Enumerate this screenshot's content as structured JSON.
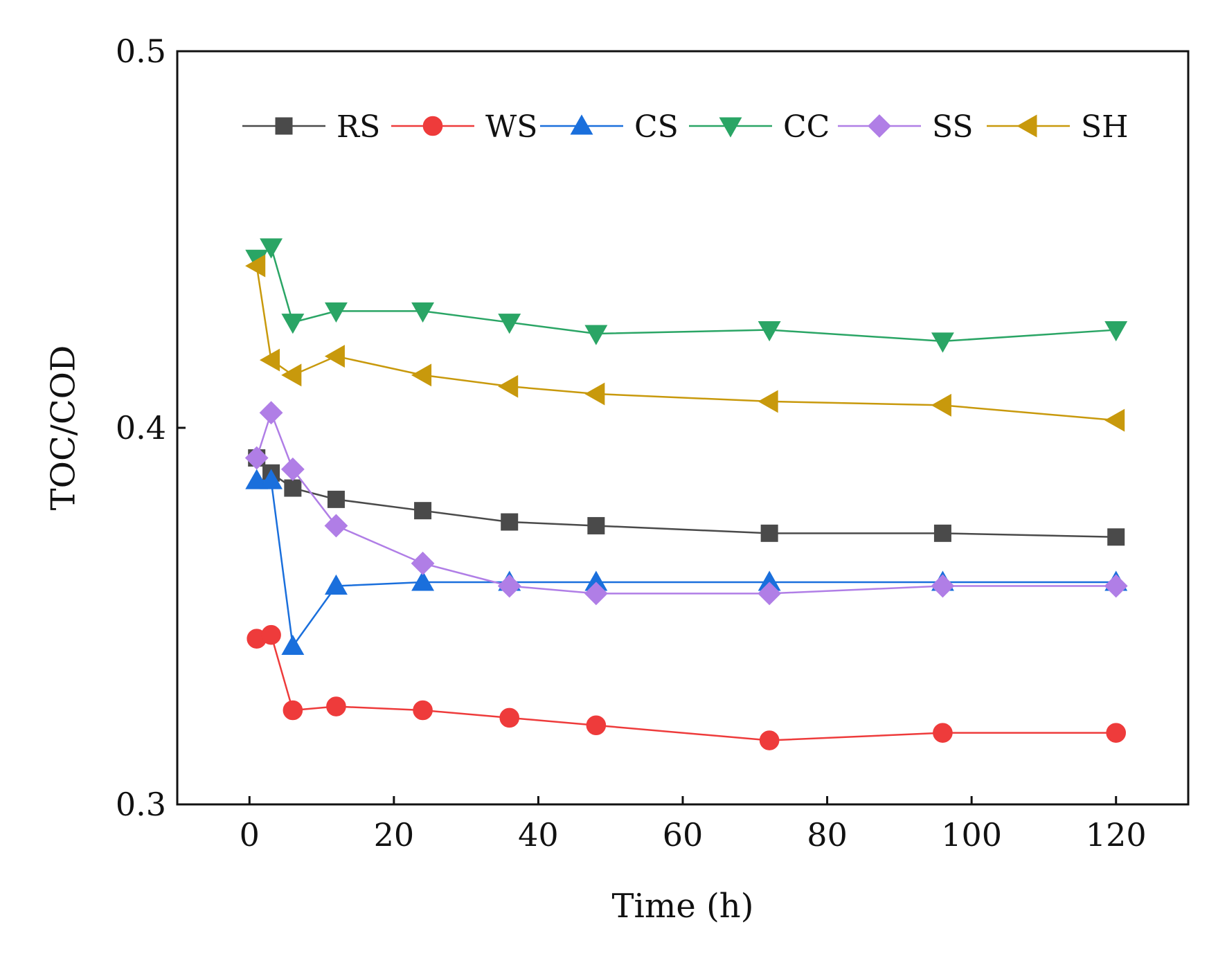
{
  "chart_data": {
    "type": "line",
    "title": "",
    "xlabel": "Time (h)",
    "ylabel": "TOC/COD",
    "xlim": [
      -10,
      130
    ],
    "ylim": [
      0.3,
      0.5
    ],
    "x_ticks": [
      0,
      20,
      40,
      60,
      80,
      100,
      120
    ],
    "x_tick_labels": [
      "0",
      "20",
      "40",
      "60",
      "80",
      "100",
      "120"
    ],
    "y_ticks": [
      0.3,
      0.4,
      0.5
    ],
    "y_tick_labels": [
      "0.3",
      "0.4",
      "0.5"
    ],
    "grid": false,
    "legend_position": "top",
    "x": [
      1,
      3,
      6,
      12,
      24,
      36,
      48,
      72,
      96,
      120
    ],
    "series": [
      {
        "name": "RS",
        "color": "#4a4a4a",
        "marker": "square",
        "values": [
          0.392,
          0.388,
          0.384,
          0.381,
          0.378,
          0.375,
          0.374,
          0.372,
          0.372,
          0.371
        ]
      },
      {
        "name": "WS",
        "color": "#ee3b3b",
        "marker": "circle",
        "values": [
          0.344,
          0.345,
          0.325,
          0.326,
          0.325,
          0.323,
          0.321,
          0.317,
          0.319,
          0.319
        ]
      },
      {
        "name": "CS",
        "color": "#1a6fdc",
        "marker": "triangle-up",
        "values": [
          0.386,
          0.386,
          0.342,
          0.358,
          0.359,
          0.359,
          0.359,
          0.359,
          0.359,
          0.359
        ]
      },
      {
        "name": "CC",
        "color": "#2aa565",
        "marker": "triangle-down",
        "values": [
          0.445,
          0.448,
          0.428,
          0.431,
          0.431,
          0.428,
          0.425,
          0.426,
          0.423,
          0.426
        ]
      },
      {
        "name": "SS",
        "color": "#b07ee6",
        "marker": "diamond",
        "values": [
          0.392,
          0.404,
          0.389,
          0.374,
          0.364,
          0.358,
          0.356,
          0.356,
          0.358,
          0.358
        ]
      },
      {
        "name": "SH",
        "color": "#c8990c",
        "marker": "triangle-left",
        "values": [
          0.443,
          0.418,
          0.414,
          0.419,
          0.414,
          0.411,
          0.409,
          0.407,
          0.406,
          0.402
        ]
      }
    ]
  }
}
